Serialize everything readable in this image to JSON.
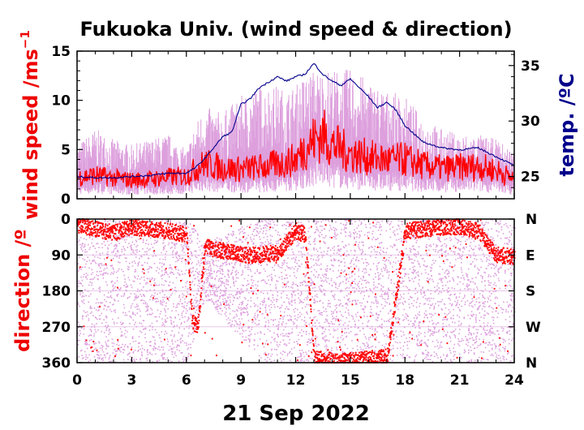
{
  "chart_data": [
    {
      "type": "line",
      "title": "Fukuoka Univ. (wind speed & direction)",
      "ylabel_left": "wind speed /ms",
      "ylabel_left_superscript": "−1",
      "ylabel_right": "temp. /ºC",
      "x_ticks": [
        0,
        3,
        6,
        9,
        12,
        15,
        18,
        21,
        24
      ],
      "x_tick_labels": [
        "0",
        "3",
        "6",
        "9",
        "12",
        "15",
        "18",
        "21",
        "24"
      ],
      "xlim": [
        0,
        24
      ],
      "ylim_left": [
        0,
        15
      ],
      "y_ticks_left": [
        0,
        5,
        10,
        15
      ],
      "y_tick_labels_left": [
        "0",
        "5",
        "10",
        "15"
      ],
      "ylim_right": [
        23,
        36.3
      ],
      "y_ticks_right": [
        25,
        30,
        35
      ],
      "y_tick_labels_right": [
        "25",
        "30",
        "35"
      ],
      "series": [
        {
          "role": "wind_speed_mean",
          "color": "#ff0000",
          "x": [
            0,
            1,
            2,
            3,
            4,
            5,
            6,
            6.5,
            7,
            8,
            9,
            10,
            11,
            11.5,
            12,
            12.5,
            13,
            13.5,
            14,
            15,
            16,
            17,
            18,
            19,
            20,
            21,
            22,
            23,
            24
          ],
          "y": [
            2.2,
            2.4,
            2.1,
            1.9,
            2.0,
            2.2,
            2.3,
            3.0,
            3.6,
            3.1,
            3.0,
            3.2,
            3.5,
            3.7,
            4.0,
            5.1,
            6.0,
            6.5,
            5.5,
            4.6,
            4.2,
            3.9,
            4.0,
            3.4,
            3.1,
            3.2,
            3.3,
            2.9,
            2.0
          ]
        },
        {
          "role": "wind_speed_gust",
          "color": "#dda0dd",
          "x": [
            0,
            1,
            2,
            3,
            4,
            5,
            6,
            6.5,
            7,
            8,
            9,
            10,
            11,
            11.5,
            12,
            12.5,
            13,
            13.5,
            14,
            15,
            16,
            17,
            18,
            19,
            20,
            21,
            22,
            23,
            24
          ],
          "y": [
            5.0,
            6.5,
            5.5,
            5.0,
            5.5,
            6.0,
            4.5,
            7.0,
            8.5,
            8.0,
            9.5,
            10.5,
            10.5,
            10.0,
            10.5,
            11.5,
            12.0,
            12.0,
            12.0,
            12.0,
            11.0,
            10.0,
            9.5,
            7.5,
            6.5,
            6.0,
            6.0,
            5.5,
            4.5
          ]
        },
        {
          "role": "temperature",
          "color": "#00008b",
          "x": [
            0,
            1,
            2,
            3,
            4,
            5,
            6,
            6.5,
            7,
            7.5,
            8,
            8.5,
            9,
            9.5,
            10,
            10.5,
            11,
            11.5,
            12,
            12.5,
            13,
            13.5,
            14,
            14.5,
            15,
            15.5,
            16,
            16.5,
            17,
            17.5,
            18,
            19,
            20,
            21,
            22,
            23,
            24
          ],
          "y": [
            25.0,
            24.9,
            24.9,
            25.0,
            25.1,
            25.3,
            25.3,
            25.8,
            26.6,
            27.6,
            28.6,
            29.0,
            31.5,
            32.0,
            33.0,
            33.5,
            34.0,
            33.6,
            34.0,
            34.2,
            35.2,
            34.2,
            33.6,
            33.2,
            33.8,
            33.0,
            32.2,
            31.2,
            31.7,
            31.0,
            29.6,
            28.1,
            27.6,
            27.4,
            27.6,
            26.8,
            26.0
          ]
        }
      ]
    },
    {
      "type": "scatter",
      "ylabel": "direction /º",
      "xlabel": "21 Sep 2022",
      "xlim": [
        0,
        24
      ],
      "ylim": [
        0,
        360
      ],
      "y_inverted": true,
      "y_ticks": [
        0,
        90,
        180,
        270,
        360
      ],
      "y_tick_labels": [
        "0",
        "90",
        "180",
        "270",
        "360"
      ],
      "y_ticks_right_labels": [
        "N",
        "E",
        "S",
        "W",
        "N"
      ],
      "series": [
        {
          "role": "direction_mean",
          "color": "#ff0000",
          "x": [
            0,
            1,
            2,
            3,
            4,
            5,
            6,
            6.3,
            6.6,
            7,
            8,
            9,
            10,
            11,
            12,
            12.5,
            13,
            14,
            15,
            16,
            17,
            18,
            19,
            20,
            21,
            22,
            23,
            24
          ],
          "y": [
            15,
            25,
            35,
            20,
            25,
            30,
            40,
            260,
            270,
            70,
            80,
            90,
            90,
            85,
            30,
            40,
            350,
            355,
            355,
            350,
            345,
            30,
            25,
            20,
            20,
            30,
            90,
            95
          ]
        },
        {
          "role": "direction_spread",
          "color": "#dda0dd",
          "x": [
            0,
            1,
            2,
            3,
            4,
            5,
            6,
            7,
            8,
            9,
            10,
            11,
            12,
            13,
            14,
            15,
            16,
            17,
            18,
            19,
            20,
            21,
            22,
            23,
            24
          ],
          "y_min": [
            0,
            0,
            0,
            0,
            0,
            0,
            0,
            60,
            40,
            20,
            0,
            0,
            0,
            0,
            0,
            0,
            0,
            0,
            0,
            0,
            0,
            0,
            0,
            0,
            0
          ],
          "y_max": [
            360,
            360,
            360,
            360,
            360,
            360,
            360,
            200,
            250,
            300,
            360,
            360,
            360,
            360,
            360,
            360,
            360,
            360,
            360,
            360,
            360,
            360,
            360,
            360,
            360
          ]
        }
      ]
    }
  ]
}
